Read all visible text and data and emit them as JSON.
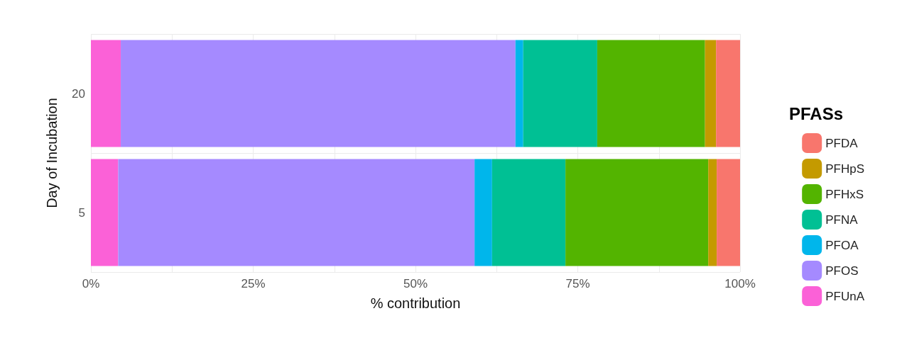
{
  "chart_data": {
    "type": "bar",
    "orientation": "horizontal",
    "stacked": true,
    "xlabel": "% contribution",
    "ylabel": "Day of Incubation",
    "legend_title": "PFASs",
    "categories": [
      "20",
      "5"
    ],
    "xlim": [
      0,
      100
    ],
    "xticks": [
      {
        "value": 0,
        "label": "0%"
      },
      {
        "value": 12.5,
        "label": null
      },
      {
        "value": 25,
        "label": "25%"
      },
      {
        "value": 37.5,
        "label": null
      },
      {
        "value": 50,
        "label": "50%"
      },
      {
        "value": 62.5,
        "label": null
      },
      {
        "value": 75,
        "label": "75%"
      },
      {
        "value": 87.5,
        "label": null
      },
      {
        "value": 100,
        "label": "100%"
      }
    ],
    "grid": true,
    "legend": "right",
    "series": [
      {
        "name": "PFUnA",
        "color": "#fb61d7",
        "values": [
          4.6,
          4.2
        ]
      },
      {
        "name": "PFOS",
        "color": "#a58aff",
        "values": [
          60.8,
          54.9
        ]
      },
      {
        "name": "PFOA",
        "color": "#00b6eb",
        "values": [
          1.2,
          2.7
        ]
      },
      {
        "name": "PFNA",
        "color": "#00c094",
        "values": [
          11.4,
          11.3
        ]
      },
      {
        "name": "PFHxS",
        "color": "#53b400",
        "values": [
          16.6,
          22.0
        ]
      },
      {
        "name": "PFHpS",
        "color": "#c49a00",
        "values": [
          1.7,
          1.3
        ]
      },
      {
        "name": "PFDA",
        "color": "#f8766d",
        "values": [
          3.7,
          3.6
        ]
      }
    ]
  }
}
